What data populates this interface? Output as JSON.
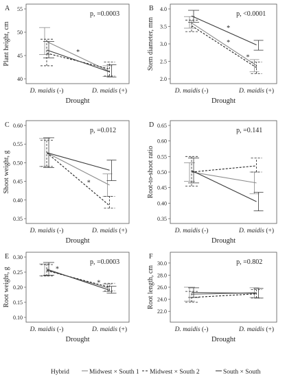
{
  "chart_data": [
    {
      "type": "line",
      "panel_label": "A",
      "ylabel": "Plant height, cm",
      "xlabel": "Drought",
      "categories": [
        "D. maidis (-)",
        "D. maidis (+)"
      ],
      "ylim": [
        40,
        55
      ],
      "yticks": [
        40,
        45,
        50,
        55
      ],
      "pvalue": "p, =0.0003",
      "asterisk": "*",
      "series": [
        {
          "name": "Midwest × South 1",
          "values": [
            48.0,
            41.6
          ],
          "err": [
            [
              45.2,
              51.0
            ],
            [
              40.5,
              42.8
            ]
          ]
        },
        {
          "name": "Midwest × South 2",
          "values": [
            45.5,
            42.1
          ],
          "err": [
            [
              42.8,
              48.5
            ],
            [
              40.6,
              43.6
            ]
          ]
        },
        {
          "name": "South × South",
          "values": [
            46.2,
            41.5
          ],
          "err": [
            [
              44.5,
              48.0
            ],
            [
              40.4,
              43.0
            ]
          ]
        }
      ]
    },
    {
      "type": "line",
      "panel_label": "B",
      "ylabel": "Stem diameter, mm",
      "xlabel": "Drought",
      "categories": [
        "D. maidis (-)",
        "D. maidis (+)"
      ],
      "ylim": [
        2.0,
        4.0
      ],
      "yticks": [
        2.0,
        2.5,
        3.0,
        3.5,
        4.0
      ],
      "pvalue": "p, <0.0001",
      "asterisk": "*",
      "series": [
        {
          "name": "Midwest × South 1",
          "values": [
            3.6,
            2.38
          ],
          "err": [
            [
              3.45,
              3.78
            ],
            [
              2.2,
              2.55
            ]
          ]
        },
        {
          "name": "Midwest × South 2",
          "values": [
            3.52,
            2.32
          ],
          "err": [
            [
              3.35,
              3.68
            ],
            [
              2.15,
              2.48
            ]
          ]
        },
        {
          "name": "South × South",
          "values": [
            3.8,
            2.97
          ],
          "err": [
            [
              3.62,
              3.96
            ],
            [
              2.82,
              3.1
            ]
          ]
        }
      ]
    },
    {
      "type": "line",
      "panel_label": "C",
      "ylabel": "Shoot weight, g",
      "xlabel": "Drought",
      "categories": [
        "D. maidis (-)",
        "D. maidis (+)"
      ],
      "ylim": [
        0.35,
        0.6
      ],
      "yticks": [
        0.35,
        0.4,
        0.45,
        0.5,
        0.55,
        0.6
      ],
      "pvalue": "p, =0.012",
      "asterisk": "*",
      "series": [
        {
          "name": "Midwest × South 1",
          "values": [
            0.527,
            0.44
          ],
          "err": [
            [
              0.49,
              0.565
            ],
            [
              0.41,
              0.47
            ]
          ]
        },
        {
          "name": "Midwest × South 2",
          "values": [
            0.527,
            0.385
          ],
          "err": [
            [
              0.49,
              0.56
            ],
            [
              0.378,
              0.41
            ]
          ]
        },
        {
          "name": "South × South",
          "values": [
            0.527,
            0.48
          ],
          "err": [
            [
              0.487,
              0.567
            ],
            [
              0.452,
              0.507
            ]
          ]
        }
      ]
    },
    {
      "type": "line",
      "panel_label": "D",
      "ylabel": "Root-to-shoot ratio",
      "xlabel": "Drought",
      "categories": [
        "D. maidis (-)",
        "D. maidis (+)"
      ],
      "ylim": [
        0.35,
        0.65
      ],
      "yticks": [
        0.35,
        0.4,
        0.45,
        0.5,
        0.55,
        0.6,
        0.65
      ],
      "pvalue": "p, =0.141",
      "asterisk": "",
      "series": [
        {
          "name": "Midwest × South 1",
          "values": [
            0.5,
            0.465
          ],
          "err": [
            [
              0.47,
              0.53
            ],
            [
              0.43,
              0.5
            ]
          ]
        },
        {
          "name": "Midwest × South 2",
          "values": [
            0.5,
            0.52
          ],
          "err": [
            [
              0.455,
              0.55
            ],
            [
              0.5,
              0.545
            ]
          ]
        },
        {
          "name": "South × South",
          "values": [
            0.505,
            0.405
          ],
          "err": [
            [
              0.465,
              0.545
            ],
            [
              0.375,
              0.435
            ]
          ]
        }
      ]
    },
    {
      "type": "line",
      "panel_label": "E",
      "ylabel": "Root weight, g",
      "xlabel": "Drought",
      "categories": [
        "D. maidis (-)",
        "D. maidis (+)"
      ],
      "ylim": [
        0.1,
        0.3
      ],
      "yticks": [
        0.1,
        0.15,
        0.2,
        0.25,
        0.3
      ],
      "pvalue": "p, =0.0003",
      "asterisk": "*",
      "series": [
        {
          "name": "Midwest × South 1",
          "values": [
            0.257,
            0.196
          ],
          "err": [
            [
              0.238,
              0.277
            ],
            [
              0.185,
              0.21
            ]
          ]
        },
        {
          "name": "Midwest × South 2",
          "values": [
            0.255,
            0.2
          ],
          "err": [
            [
              0.237,
              0.275
            ],
            [
              0.188,
              0.213
            ]
          ]
        },
        {
          "name": "South × South",
          "values": [
            0.26,
            0.19
          ],
          "err": [
            [
              0.24,
              0.282
            ],
            [
              0.18,
              0.203
            ]
          ]
        }
      ]
    },
    {
      "type": "line",
      "panel_label": "F",
      "ylabel": "Root length, cm",
      "xlabel": "Drought",
      "categories": [
        "D. maidis (-)",
        "D. maidis (+)"
      ],
      "ylim": [
        21.0,
        31.0
      ],
      "yticks": [
        22.0,
        24.0,
        26.0,
        28.0,
        30.0
      ],
      "pvalue": "p, =0.802",
      "asterisk": "",
      "series": [
        {
          "name": "Midwest × South 1",
          "values": [
            24.8,
            25.1
          ],
          "err": [
            [
              23.7,
              26.0
            ],
            [
              24.3,
              25.9
            ]
          ]
        },
        {
          "name": "Midwest × South 2",
          "values": [
            24.3,
            24.9
          ],
          "err": [
            [
              23.5,
              25.3
            ],
            [
              24.2,
              25.6
            ]
          ]
        },
        {
          "name": "South × South",
          "values": [
            25.1,
            25.0
          ],
          "err": [
            [
              24.3,
              25.9
            ],
            [
              24.2,
              25.8
            ]
          ]
        }
      ]
    }
  ],
  "legend": {
    "title": "Hybrid",
    "items": [
      {
        "label": "Midwest × South 1",
        "style": "solid-gray"
      },
      {
        "label": "Midwest × South 2",
        "style": "dashed-black"
      },
      {
        "label": "South × South",
        "style": "solid-black"
      }
    ]
  },
  "colors": {
    "series1": "#8a8a8a",
    "series2": "#222222",
    "series3": "#3a3a3a",
    "axis": "#555555"
  }
}
